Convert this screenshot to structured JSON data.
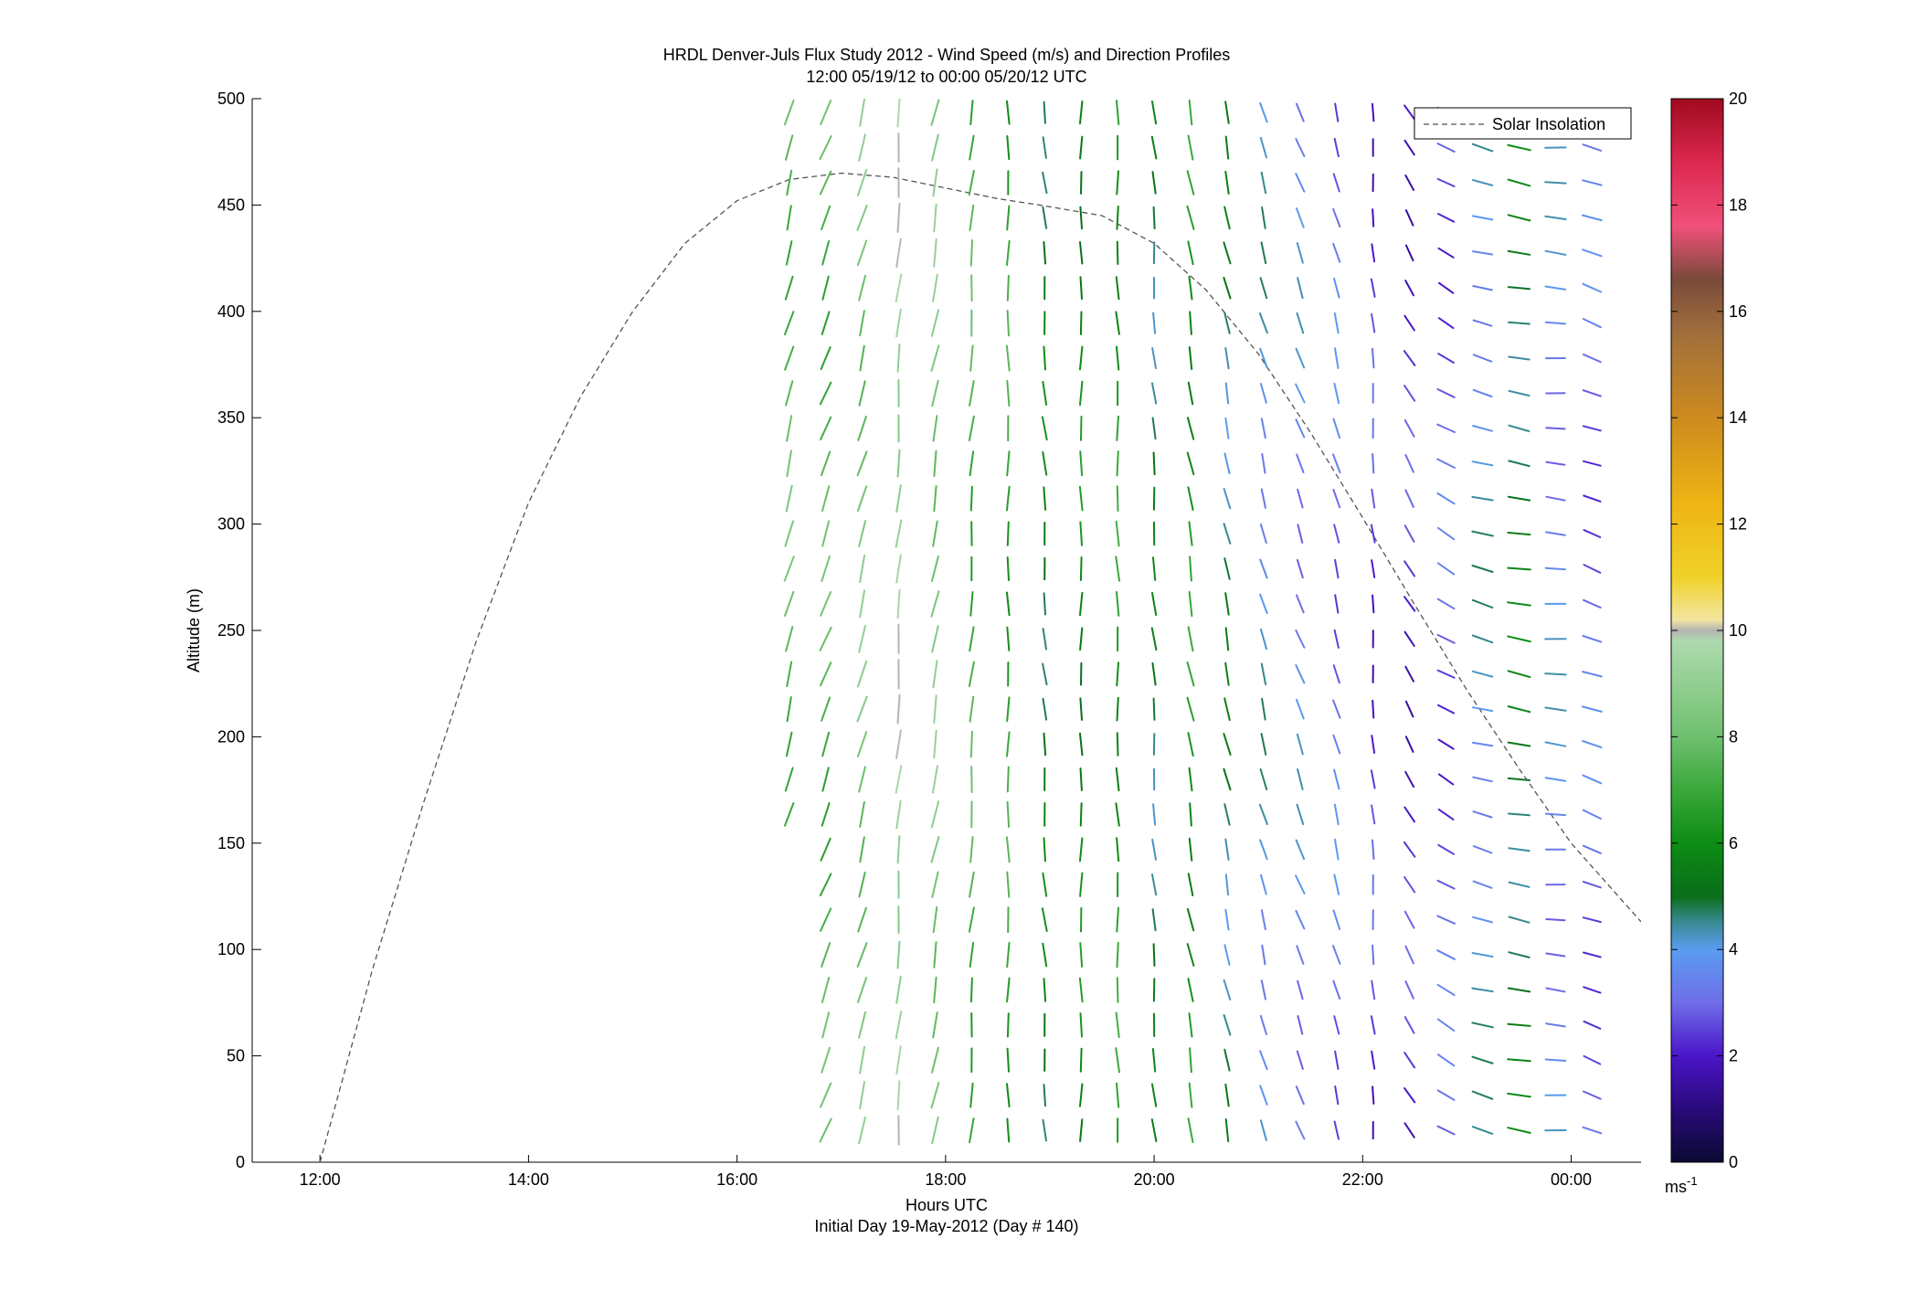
{
  "chart_data": {
    "type": "wind_barb_profile",
    "title": "HRDL Denver-Juls Flux Study 2012 - Wind Speed (m/s) and Direction Profiles",
    "subtitle": "12:00 05/19/12 to 00:00 05/20/12  UTC",
    "xlabel": "Hours UTC",
    "xlabel2": "Initial Day 19-May-2012 (Day # 140)",
    "ylabel": "Altitude (m)",
    "x_ticks": [
      "12:00",
      "14:00",
      "16:00",
      "18:00",
      "20:00",
      "22:00",
      "00:00"
    ],
    "x_tick_hours": [
      12,
      14,
      16,
      18,
      20,
      22,
      24
    ],
    "xlim": [
      11.35,
      24.67
    ],
    "y_ticks": [
      "0",
      "50",
      "100",
      "150",
      "200",
      "250",
      "300",
      "350",
      "400",
      "450",
      "500"
    ],
    "ylim": [
      0,
      500
    ],
    "legend": {
      "entries": [
        "Solar Insolation"
      ],
      "placement": "top-right"
    },
    "colorbar": {
      "ticks": [
        "0",
        "2",
        "4",
        "6",
        "8",
        "10",
        "12",
        "14",
        "16",
        "18",
        "20"
      ],
      "range": [
        0,
        20
      ],
      "unit_base": "ms",
      "unit_exp": "-1"
    },
    "solar_insolation": {
      "style": "dashed",
      "color": "#555555",
      "points": [
        [
          12.0,
          0
        ],
        [
          12.5,
          90
        ],
        [
          13.0,
          170
        ],
        [
          13.5,
          245
        ],
        [
          14.0,
          310
        ],
        [
          14.5,
          360
        ],
        [
          15.0,
          400
        ],
        [
          15.5,
          432
        ],
        [
          16.0,
          452
        ],
        [
          16.5,
          462
        ],
        [
          17.0,
          465
        ],
        [
          17.5,
          463
        ],
        [
          18.0,
          458
        ],
        [
          18.5,
          453
        ],
        [
          18.9,
          450
        ],
        [
          19.5,
          445
        ],
        [
          20.0,
          432
        ],
        [
          20.5,
          410
        ],
        [
          21.0,
          380
        ],
        [
          21.5,
          343
        ],
        [
          22.0,
          303
        ],
        [
          22.5,
          262
        ],
        [
          23.0,
          222
        ],
        [
          23.5,
          185
        ],
        [
          24.0,
          150
        ],
        [
          24.67,
          113
        ]
      ]
    },
    "wind_columns": [
      {
        "t": 16.5,
        "spd": 7.6,
        "dir": 195,
        "z0": 155
      },
      {
        "t": 16.85,
        "spd": 7.4,
        "dir": 200,
        "z0": 15
      },
      {
        "t": 17.2,
        "spd": 8.2,
        "dir": 195,
        "z0": 15
      },
      {
        "t": 17.55,
        "spd": 9.4,
        "dir": 185,
        "z0": 15
      },
      {
        "t": 17.9,
        "spd": 8.4,
        "dir": 190,
        "z0": 15
      },
      {
        "t": 18.25,
        "spd": 7.2,
        "dir": 185,
        "z0": 15
      },
      {
        "t": 18.6,
        "spd": 6.8,
        "dir": 180,
        "z0": 15
      },
      {
        "t": 18.95,
        "spd": 5.4,
        "dir": 175,
        "z0": 15
      },
      {
        "t": 19.3,
        "spd": 5.8,
        "dir": 180,
        "z0": 15
      },
      {
        "t": 19.65,
        "spd": 6.4,
        "dir": 178,
        "z0": 15
      },
      {
        "t": 20.0,
        "spd": 5.0,
        "dir": 175,
        "z0": 15
      },
      {
        "t": 20.35,
        "spd": 6.2,
        "dir": 170,
        "z0": 15
      },
      {
        "t": 20.7,
        "spd": 4.8,
        "dir": 168,
        "z0": 15
      },
      {
        "t": 21.05,
        "spd": 4.0,
        "dir": 165,
        "z0": 15
      },
      {
        "t": 21.4,
        "spd": 3.6,
        "dir": 160,
        "z0": 15
      },
      {
        "t": 21.75,
        "spd": 3.2,
        "dir": 165,
        "z0": 15
      },
      {
        "t": 22.1,
        "spd": 2.4,
        "dir": 175,
        "z0": 15
      },
      {
        "t": 22.45,
        "spd": 2.2,
        "dir": 150,
        "z0": 15
      },
      {
        "t": 22.8,
        "spd": 2.8,
        "dir": 120,
        "z0": 15
      },
      {
        "t": 23.15,
        "spd": 4.0,
        "dir": 105,
        "z0": 15
      },
      {
        "t": 23.5,
        "spd": 5.2,
        "dir": 100,
        "z0": 15
      },
      {
        "t": 23.85,
        "spd": 3.6,
        "dir": 95,
        "z0": 15
      },
      {
        "t": 24.2,
        "spd": 3.0,
        "dir": 110,
        "z0": 15
      }
    ]
  }
}
